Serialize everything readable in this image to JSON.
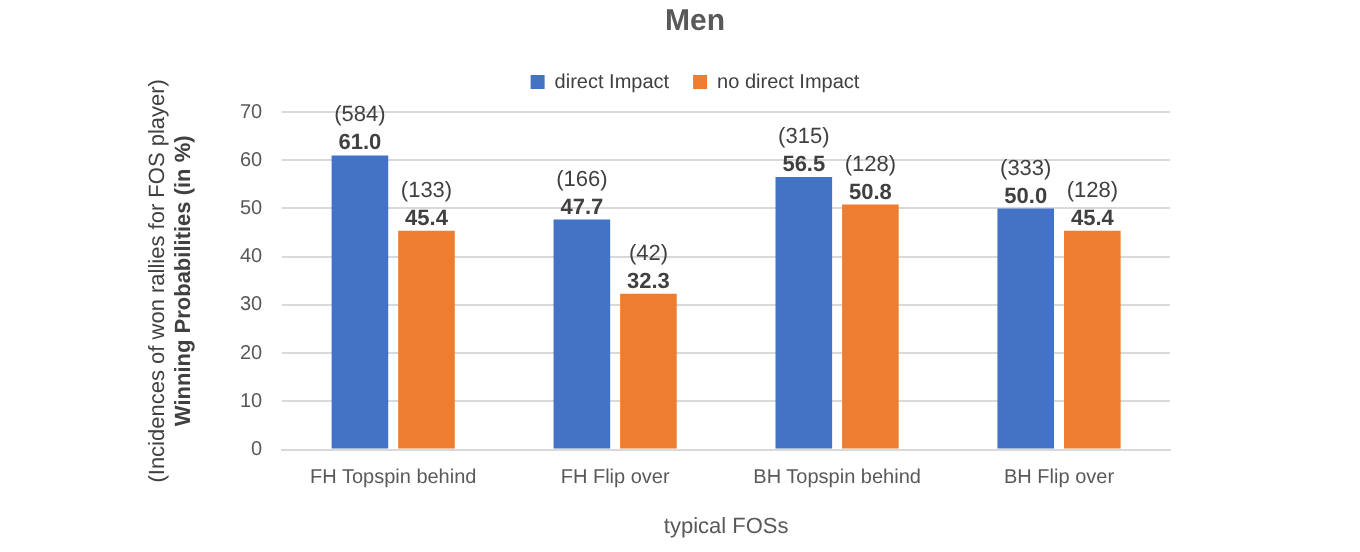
{
  "chart_data": {
    "type": "bar",
    "title": "Men",
    "xlabel": "typical FOSs",
    "ylabel": "(Incidences of won rallies for FOS player)\nWinning Probabilities (in %)",
    "categories": [
      "FH Topspin behind",
      "FH Flip over",
      "BH Topspin behind",
      "BH Flip over"
    ],
    "series": [
      {
        "name": "direct Impact",
        "color": "#4472c4",
        "values": [
          61.0,
          47.7,
          56.5,
          50.0
        ],
        "value_labels": [
          "(584)\n61.0",
          "(166)\n47.7",
          "(315)\n56.5",
          "(333)\n50.0"
        ]
      },
      {
        "name": "no direct Impact",
        "color": "#ed7d31",
        "values": [
          45.4,
          32.3,
          50.8,
          45.4
        ],
        "value_labels": [
          "(133)\n45.4",
          "(42)\n32.3",
          "(128)\n50.8",
          "(128)\n45.4"
        ]
      }
    ],
    "ylim": [
      0,
      70
    ],
    "yticks": [
      0,
      10,
      20,
      30,
      40,
      50,
      60,
      70
    ],
    "grid": "y",
    "legend": "top"
  }
}
